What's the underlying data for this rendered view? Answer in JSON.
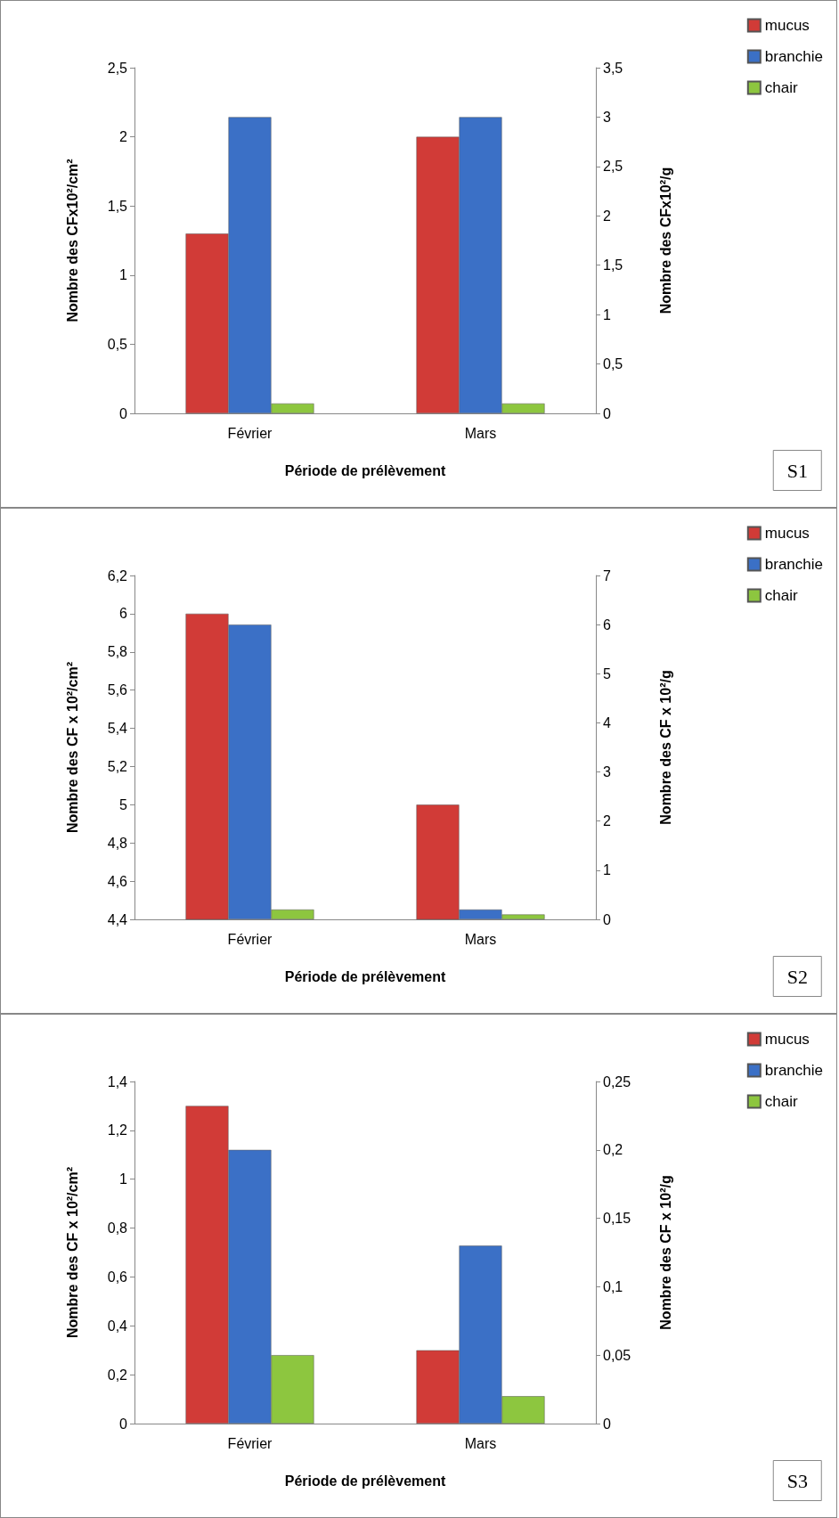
{
  "chart_data": [
    {
      "type": "bar",
      "categories": [
        "Février",
        "Mars"
      ],
      "xlabel": "Période de prélèvement",
      "ylabel": "Nombre des CFx10²/cm²",
      "y2label": "Nombre des CFx10²/g",
      "annotations": [
        "S1"
      ],
      "legend": "top right",
      "ylim": [
        0,
        2.5
      ],
      "yticks": [
        0,
        {
          "value": 0.5,
          "label": "0,5"
        },
        1,
        {
          "value": 1.5,
          "label": "1,5"
        },
        2,
        {
          "value": 2.5,
          "label": "2,5"
        }
      ],
      "y2lim": [
        0,
        3.5
      ],
      "y2ticks": [
        0,
        {
          "value": 0.5,
          "label": "0,5"
        },
        1,
        {
          "value": 1.5,
          "label": "1,5"
        },
        2,
        {
          "value": 2.5,
          "label": "2,5"
        },
        3,
        {
          "value": 3.5,
          "label": "3,5"
        }
      ],
      "series": [
        {
          "name": "mucus",
          "color": "#d13b37",
          "values": [
            1.3,
            2.0
          ]
        },
        {
          "name": "branchie",
          "color": "#3b70c6",
          "axis": "y2",
          "values": [
            3.0,
            3.0
          ]
        },
        {
          "name": "chair",
          "color": "#8dc63f",
          "axis": "y2",
          "values": [
            0.1,
            0.1
          ]
        }
      ]
    },
    {
      "type": "bar",
      "categories": [
        "Février",
        "Mars"
      ],
      "xlabel": "Période de prélèvement",
      "ylabel": "Nombre des CF x 10²/cm²",
      "y2label": "Nombre des CF x 10²/g",
      "annotations": [
        "S2"
      ],
      "legend": "top right",
      "ylim": [
        4.4,
        6.2
      ],
      "yticks": [
        {
          "value": 4.4,
          "label": "4,4"
        },
        {
          "value": 4.6,
          "label": "4,6"
        },
        {
          "value": 4.8,
          "label": "4,8"
        },
        5,
        {
          "value": 5.2,
          "label": "5,2"
        },
        {
          "value": 5.4,
          "label": "5,4"
        },
        {
          "value": 5.6,
          "label": "5,6"
        },
        {
          "value": 5.8,
          "label": "5,8"
        },
        6,
        {
          "value": 6.2,
          "label": "6,2"
        }
      ],
      "y2lim": [
        0,
        7
      ],
      "y2ticks": [
        0,
        1,
        2,
        3,
        4,
        5,
        6,
        7
      ],
      "series": [
        {
          "name": "mucus",
          "color": "#d13b37",
          "values": [
            6.0,
            5.0
          ]
        },
        {
          "name": "branchie",
          "color": "#3b70c6",
          "axis": "y2",
          "values": [
            6.0,
            0.2
          ]
        },
        {
          "name": "chair",
          "color": "#8dc63f",
          "axis": "y2",
          "values": [
            0.2,
            0.1
          ]
        }
      ]
    },
    {
      "type": "bar",
      "categories": [
        "Février",
        "Mars"
      ],
      "xlabel": "Période de prélèvement",
      "ylabel": "Nombre des CF x 10²/cm²",
      "y2label": "Nombre des CF x 10²/g",
      "annotations": [
        "S3"
      ],
      "legend": "top right",
      "ylim": [
        0,
        1.4
      ],
      "yticks": [
        0,
        {
          "value": 0.2,
          "label": "0,2"
        },
        {
          "value": 0.4,
          "label": "0,4"
        },
        {
          "value": 0.6,
          "label": "0,6"
        },
        {
          "value": 0.8,
          "label": "0,8"
        },
        1,
        {
          "value": 1.2,
          "label": "1,2"
        },
        {
          "value": 1.4,
          "label": "1,4"
        }
      ],
      "y2lim": [
        0,
        0.25
      ],
      "y2ticks": [
        0,
        {
          "value": 0.05,
          "label": "0,05"
        },
        {
          "value": 0.1,
          "label": "0,1"
        },
        {
          "value": 0.15,
          "label": "0,15"
        },
        {
          "value": 0.2,
          "label": "0,2"
        },
        {
          "value": 0.25,
          "label": "0,25"
        }
      ],
      "series": [
        {
          "name": "mucus",
          "color": "#d13b37",
          "values": [
            1.3,
            0.3
          ]
        },
        {
          "name": "branchie",
          "color": "#3b70c6",
          "axis": "y2",
          "values": [
            0.2,
            0.13
          ]
        },
        {
          "name": "chair",
          "color": "#8dc63f",
          "axis": "y2",
          "values": [
            0.05,
            0.02
          ]
        }
      ]
    }
  ]
}
